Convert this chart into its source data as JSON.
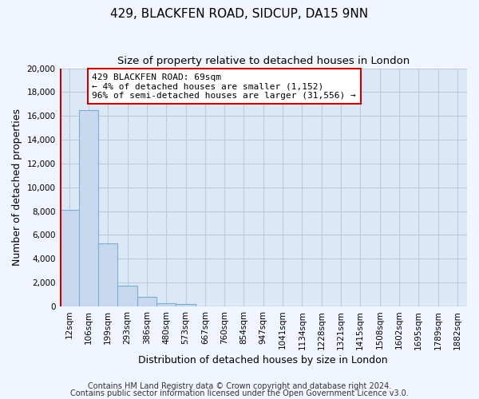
{
  "title": "429, BLACKFEN ROAD, SIDCUP, DA15 9NN",
  "subtitle": "Size of property relative to detached houses in London",
  "xlabel": "Distribution of detached houses by size in London",
  "ylabel": "Number of detached properties",
  "bar_labels": [
    "12sqm",
    "106sqm",
    "199sqm",
    "293sqm",
    "386sqm",
    "480sqm",
    "573sqm",
    "667sqm",
    "760sqm",
    "854sqm",
    "947sqm",
    "1041sqm",
    "1134sqm",
    "1228sqm",
    "1321sqm",
    "1415sqm",
    "1508sqm",
    "1602sqm",
    "1695sqm",
    "1789sqm",
    "1882sqm"
  ],
  "bar_values": [
    8100,
    16500,
    5300,
    1750,
    800,
    250,
    200,
    0,
    0,
    0,
    0,
    0,
    0,
    0,
    0,
    0,
    0,
    0,
    0,
    0,
    0
  ],
  "bar_fill_color": "#c8d8ee",
  "bar_edge_color": "#7aafd4",
  "marker_line_color": "#cc0000",
  "ylim": [
    0,
    20000
  ],
  "yticks": [
    0,
    2000,
    4000,
    6000,
    8000,
    10000,
    12000,
    14000,
    16000,
    18000,
    20000
  ],
  "annotation_title": "429 BLACKFEN ROAD: 69sqm",
  "annotation_line1": "← 4% of detached houses are smaller (1,152)",
  "annotation_line2": "96% of semi-detached houses are larger (31,556) →",
  "annotation_box_color": "#ffffff",
  "annotation_box_edge": "#cc0000",
  "footnote1": "Contains HM Land Registry data © Crown copyright and database right 2024.",
  "footnote2": "Contains public sector information licensed under the Open Government Licence v3.0.",
  "plot_bg_color": "#dce8f5",
  "fig_bg_color": "#f0f5ff",
  "grid_color": "#b8cce0",
  "title_fontsize": 11,
  "subtitle_fontsize": 9.5,
  "axis_label_fontsize": 9,
  "tick_fontsize": 7.5,
  "footnote_fontsize": 7,
  "annotation_fontsize": 8
}
